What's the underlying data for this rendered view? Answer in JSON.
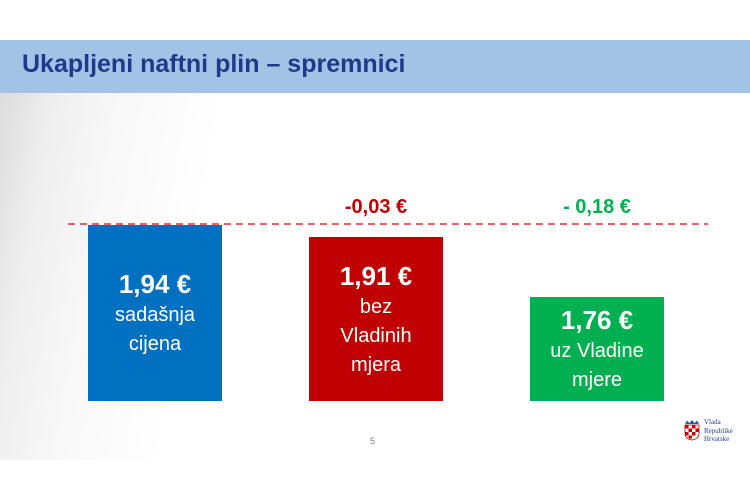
{
  "slide": {
    "title": "Ukapljeni naftni plin – spremnici",
    "page_number": "5",
    "logo_lines": [
      "Vlada",
      "Republike",
      "Hrvatske"
    ]
  },
  "chart_data": {
    "type": "bar",
    "unit": "€",
    "baseline": 1.94,
    "categories": [
      "sadašnja cijena",
      "bez Vladinih mjera",
      "uz Vladine mjere"
    ],
    "values": [
      1.94,
      1.91,
      1.76
    ],
    "value_labels": [
      "1,94 €",
      "1,91 €",
      "1,76 €"
    ],
    "description_lines": [
      [
        "sadašnja",
        "cijena"
      ],
      [
        "bez",
        "Vladinih",
        "mjera"
      ],
      [
        "uz Vladine",
        "mjere"
      ]
    ],
    "change_labels": [
      "",
      "-0,03 €",
      "- 0,18 €"
    ],
    "colors": [
      "#0070c0",
      "#c00000",
      "#00b050"
    ],
    "reference_line_color": "#e03030",
    "ylim": [
      1.7,
      1.94
    ]
  }
}
